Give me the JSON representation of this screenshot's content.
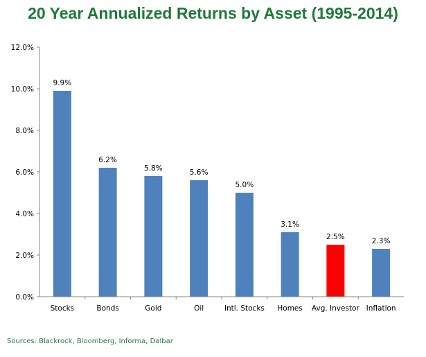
{
  "chart_data": {
    "type": "bar",
    "title": "20 Year Annualized Returns by Asset (1995-2014)",
    "categories": [
      "Stocks",
      "Bonds",
      "Gold",
      "Oil",
      "Intl. Stocks",
      "Homes",
      "Avg. Investor",
      "Inflation"
    ],
    "values": [
      9.9,
      6.2,
      5.8,
      5.6,
      5.0,
      3.1,
      2.5,
      2.3
    ],
    "data_labels": [
      "9.9%",
      "6.2%",
      "5.8%",
      "5.6%",
      "5.0%",
      "3.1%",
      "2.5%",
      "2.3%"
    ],
    "yticks": [
      "0.0%",
      "2.0%",
      "4.0%",
      "6.0%",
      "8.0%",
      "10.0%",
      "12.0%"
    ],
    "ylim": [
      0,
      12
    ],
    "grid": false,
    "legend": "none",
    "bar_color": "#4f81bd",
    "highlight_color": "#ff0000",
    "highlight_category": "Avg. Investor",
    "title_color": "#1f7a3a"
  },
  "source": "Sources: Blackrock, Bloomberg, Informa, Dalbar"
}
